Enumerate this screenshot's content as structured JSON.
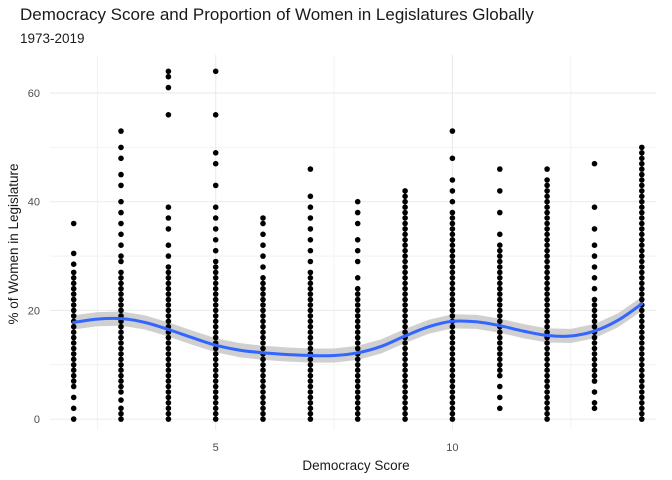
{
  "chart_data": {
    "type": "scatter",
    "title": "Democracy Score and Proportion of Women in Legislatures Globally",
    "subtitle": "1973-2019",
    "xlabel": "Democracy Score",
    "ylabel": "% of Women in Legislature",
    "xlim": [
      1.5,
      14.3
    ],
    "ylim": [
      -2,
      67
    ],
    "x_ticks": [
      5,
      10
    ],
    "x_minor_ticks": [
      2.5,
      7.5,
      12.5
    ],
    "y_ticks": [
      0,
      20,
      40,
      60
    ],
    "y_minor_ticks": [
      10,
      30,
      50
    ],
    "grid": true,
    "point_color": "#000000",
    "smooth_color": "#3366ff",
    "ribbon_color": "#c8c8c8",
    "point_series": [
      {
        "x": 2,
        "values": [
          0,
          2,
          4,
          6,
          7,
          8,
          9,
          10,
          11,
          12,
          13,
          14,
          15,
          16,
          17,
          18,
          19,
          20,
          21,
          22,
          23,
          24,
          25,
          26,
          27,
          28.5,
          30.5,
          36
        ]
      },
      {
        "x": 3,
        "values": [
          0,
          1,
          2,
          3.5,
          5,
          6,
          7,
          8,
          9,
          10,
          11,
          12,
          13,
          14,
          15,
          16,
          17,
          18,
          19,
          20,
          21,
          22,
          23,
          24,
          25,
          26,
          27,
          29,
          30,
          32,
          34,
          36,
          38,
          40,
          43,
          45,
          48,
          50,
          53
        ]
      },
      {
        "x": 4,
        "values": [
          0,
          1,
          2,
          3,
          4,
          5,
          6,
          7,
          8,
          9,
          10,
          11,
          12,
          13,
          14,
          15,
          16,
          17,
          18,
          19,
          20,
          21,
          22,
          23,
          24,
          25,
          26,
          27,
          28,
          30,
          32,
          35,
          37,
          39,
          56,
          61,
          63,
          64
        ]
      },
      {
        "x": 5,
        "values": [
          0,
          1,
          2,
          3,
          4,
          5,
          6,
          7,
          8,
          9,
          10,
          11,
          12,
          13,
          14,
          15,
          16,
          17,
          18,
          19,
          20,
          21,
          22,
          23,
          24,
          25,
          26,
          27,
          28,
          29,
          31,
          33,
          35,
          37,
          39,
          43,
          47,
          49,
          56,
          64
        ]
      },
      {
        "x": 6,
        "values": [
          0,
          1,
          2,
          3,
          4,
          5,
          6,
          7,
          8,
          9,
          10,
          11,
          12,
          13,
          14,
          15,
          16,
          17,
          18,
          19,
          20,
          21,
          22,
          23,
          24,
          25,
          26,
          28,
          30,
          32,
          34,
          36,
          37
        ]
      },
      {
        "x": 7,
        "values": [
          0,
          1,
          2,
          3,
          4,
          5,
          6,
          7,
          8,
          9,
          10,
          11,
          12,
          13,
          14,
          15,
          16,
          17,
          18,
          19,
          20,
          21,
          22,
          23,
          24,
          25,
          26,
          27,
          29,
          31,
          33,
          35,
          37,
          39,
          41,
          46
        ]
      },
      {
        "x": 8,
        "values": [
          0,
          1,
          2,
          3,
          4,
          5,
          6,
          7,
          8,
          9,
          10,
          11,
          12,
          13,
          14,
          15,
          16,
          17,
          18,
          19,
          20,
          21,
          22,
          23,
          24,
          26,
          29,
          31,
          33,
          36,
          38,
          40
        ]
      },
      {
        "x": 9,
        "values": [
          0,
          1,
          2,
          3,
          4,
          5,
          6,
          7,
          8,
          9,
          10,
          11,
          12,
          13,
          14,
          15,
          16,
          17,
          18,
          19,
          20,
          21,
          22,
          23,
          24,
          25,
          26,
          27,
          28,
          29,
          30,
          31,
          32,
          33,
          34,
          35,
          36,
          37,
          38,
          39,
          40,
          41,
          42
        ]
      },
      {
        "x": 10,
        "values": [
          0,
          1,
          2,
          3,
          4,
          5,
          6,
          7,
          8,
          9,
          10,
          11,
          12,
          13,
          14,
          15,
          16,
          17,
          18,
          19,
          20,
          21,
          22,
          23,
          24,
          25,
          26,
          27,
          28,
          29,
          30,
          31,
          32,
          33,
          34,
          35,
          36,
          37,
          38,
          40,
          42,
          44,
          48,
          53
        ]
      },
      {
        "x": 11,
        "values": [
          2,
          4,
          6,
          8,
          9,
          10,
          11,
          12,
          13,
          14,
          15,
          16,
          17,
          18,
          19,
          20,
          21,
          22,
          23,
          24,
          25,
          26,
          27,
          28,
          29,
          30,
          31,
          32,
          34,
          38,
          42,
          46
        ]
      },
      {
        "x": 12,
        "values": [
          0,
          1,
          2,
          3,
          4,
          5,
          6,
          7,
          8,
          9,
          10,
          11,
          12,
          13,
          14,
          15,
          16,
          17,
          18,
          19,
          20,
          21,
          22,
          23,
          24,
          25,
          26,
          27,
          28,
          29,
          30,
          31,
          32,
          33,
          34,
          35,
          36,
          37,
          38,
          39,
          40,
          41,
          42,
          43,
          44,
          46
        ]
      },
      {
        "x": 13,
        "values": [
          2,
          3,
          5,
          7,
          8,
          9,
          10,
          11,
          12,
          13,
          14,
          15,
          16,
          17,
          18,
          19,
          20,
          21,
          22,
          24,
          26,
          28,
          30,
          32,
          35,
          39,
          47
        ]
      },
      {
        "x": 14,
        "values": [
          0,
          1,
          2,
          3,
          4,
          5,
          6,
          7,
          8,
          9,
          10,
          11,
          12,
          13,
          14,
          15,
          16,
          17,
          18,
          19,
          20,
          21,
          22,
          23,
          24,
          25,
          26,
          27,
          28,
          29,
          30,
          31,
          32,
          33,
          34,
          35,
          36,
          37,
          38,
          39,
          40,
          41,
          42,
          43,
          44,
          45,
          46,
          47,
          48,
          49,
          50
        ]
      }
    ],
    "smooth_line": {
      "x": [
        2,
        2.5,
        3,
        3.5,
        4,
        4.5,
        5,
        5.5,
        6,
        6.5,
        7,
        7.5,
        8,
        8.5,
        9,
        9.5,
        10,
        10.5,
        11,
        11.5,
        12,
        12.5,
        13,
        13.5,
        14
      ],
      "y": [
        17.8,
        18.4,
        18.5,
        17.8,
        16.5,
        15.0,
        13.6,
        12.7,
        12.2,
        11.9,
        11.7,
        11.7,
        12.2,
        13.4,
        15.3,
        17.0,
        18.0,
        17.9,
        17.2,
        16.2,
        15.4,
        15.3,
        16.2,
        18.2,
        21.2
      ]
    },
    "ribbon_halfwidth": 1.3
  }
}
